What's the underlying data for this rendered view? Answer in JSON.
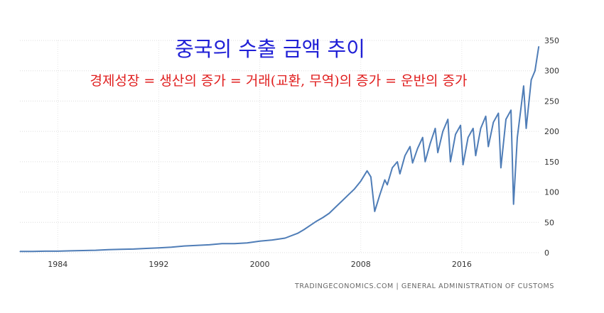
{
  "chart_data": {
    "type": "line",
    "title": "중국의 수출 금액 추이",
    "subtitle": "경제성장 = 생산의 증가 = 거래(교환, 무역)의 증가 = 운반의 증가",
    "xlabel": "",
    "ylabel": "",
    "xlim": [
      1981,
      2022.2
    ],
    "ylim": [
      0,
      350
    ],
    "yticks": [
      "0",
      "50",
      "100",
      "150",
      "200",
      "250",
      "300",
      "350"
    ],
    "xticks": [
      "1984",
      "1992",
      "2000",
      "2008",
      "2016"
    ],
    "grid": true,
    "y_axis_position": "right",
    "line_color": "#4f7db7",
    "series": [
      {
        "x": [
          1981,
          1982,
          1983,
          1984,
          1985,
          1986,
          1987,
          1988,
          1989,
          1990,
          1991,
          1992,
          1993,
          1994,
          1995,
          1996,
          1997,
          1998,
          1999,
          2000,
          2001,
          2002,
          2003,
          2003.5,
          2004,
          2004.5,
          2005,
          2005.5,
          2006,
          2006.5,
          2007,
          2007.5,
          2008,
          2008.5,
          2008.8,
          2009.1,
          2009.5,
          2009.9,
          2010.1,
          2010.5,
          2010.9,
          2011.1,
          2011.5,
          2011.9,
          2012.1,
          2012.5,
          2012.9,
          2013.1,
          2013.5,
          2013.9,
          2014.1,
          2014.5,
          2014.9,
          2015.1,
          2015.5,
          2015.9,
          2016.1,
          2016.5,
          2016.9,
          2017.1,
          2017.5,
          2017.9,
          2018.1,
          2018.5,
          2018.9,
          2019.1,
          2019.5,
          2019.9,
          2020.1,
          2020.4,
          2020.7,
          2020.9,
          2021.1,
          2021.5,
          2021.8,
          2022.1
        ],
        "y": [
          2,
          2,
          2.5,
          2.5,
          3,
          3.5,
          4,
          5,
          5.5,
          6,
          7,
          8,
          9,
          11,
          12,
          13,
          15,
          15,
          16,
          19,
          21,
          24,
          32,
          38,
          45,
          52,
          58,
          65,
          75,
          85,
          95,
          105,
          118,
          135,
          125,
          68,
          95,
          120,
          112,
          140,
          150,
          130,
          160,
          175,
          148,
          172,
          190,
          150,
          180,
          205,
          165,
          200,
          220,
          150,
          195,
          210,
          145,
          190,
          205,
          160,
          205,
          225,
          175,
          215,
          230,
          140,
          220,
          235,
          80,
          190,
          240,
          275,
          205,
          285,
          300,
          340
        ]
      }
    ]
  },
  "source_text": "TRADINGECONOMICS.COM  |  GENERAL ADMINISTRATION OF CUSTOMS"
}
